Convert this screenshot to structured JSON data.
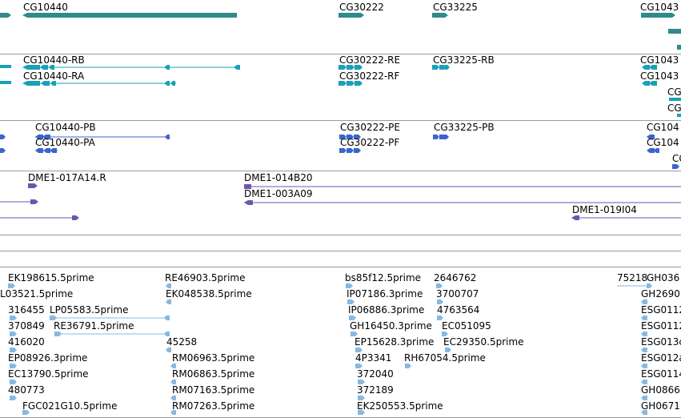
{
  "tracks": {
    "genes": {
      "color": "#2e8b8b",
      "labels": [
        "CG10440",
        "CG30222",
        "CG33225",
        "CG1043"
      ]
    },
    "transcripts": {
      "color": "#1aa0b8",
      "labels": [
        "CG10440-RB",
        "CG30222-RE",
        "CG33225-RB",
        "CG1043",
        "CG10440-RA",
        "CG30222-RF",
        "CG1043",
        "CG",
        "CG"
      ]
    },
    "proteins": {
      "color": "#3a66cc",
      "labels": [
        "CG10440-PB",
        "CG30222-PE",
        "CG33225-PB",
        "CG104",
        "CG10440-PA",
        "CG30222-PF",
        "CG104",
        "CG"
      ]
    },
    "bac_ends": {
      "color": "#7055b0",
      "labels": [
        "DME1-017A14.R",
        "DME1-014B20",
        "DME1-003A09",
        "DME1-019I04"
      ]
    },
    "ests": {
      "color": "#88b8e0",
      "labels": [
        "EK198615.5prime",
        "RE46903.5prime",
        "bs85f12.5prime",
        "2646762",
        "75218",
        "GH036",
        "L03521.5prime",
        "EK048538.5prime",
        "IP07186.3prime",
        "3700707",
        "GH2690",
        "316455",
        "LP05583.5prime",
        "IP06886.3prime",
        "4763564",
        "ESG0112",
        "370849",
        "RE36791.5prime",
        "GH16450.3prime",
        "EC051095",
        "ESG0112",
        "416020",
        "45258",
        "EP15628.3prime",
        "EC29350.5prime",
        "ESG013c",
        "EP08926.3prime",
        "RM06963.5prime",
        "4P3341",
        "RH67054.5prime",
        "ESG012a",
        "EC13790.5prime",
        "RM06863.5prime",
        "372040",
        "ESG0114",
        "480773",
        "RM07163.5prime",
        "372189",
        "GH0866",
        "FGC021G10.5prime",
        "RM07263.5prime",
        "EK250553.5prime",
        "GH0671"
      ]
    }
  }
}
